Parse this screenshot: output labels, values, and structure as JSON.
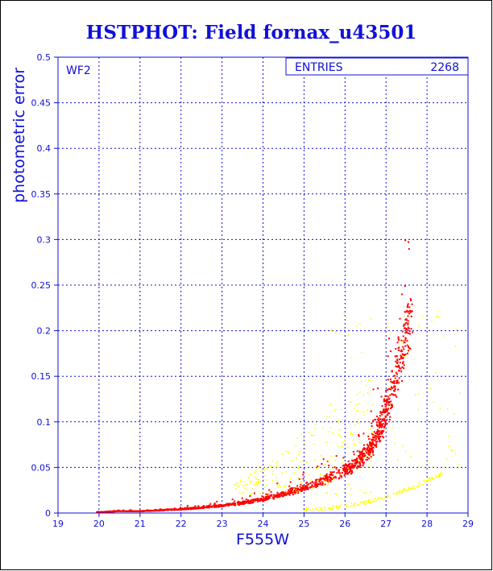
{
  "chart_data": {
    "type": "scatter",
    "title": "HSTPHOT: Field fornax_u43501",
    "xlabel": "F555W",
    "ylabel": "photometric error",
    "xlim": [
      19,
      29
    ],
    "ylim": [
      0,
      0.5
    ],
    "x_ticks": [
      "19",
      "20",
      "21",
      "22",
      "23",
      "24",
      "25",
      "26",
      "27",
      "28",
      "29"
    ],
    "y_ticks": [
      "0",
      "0.05",
      "0.1",
      "0.15",
      "0.2",
      "0.25",
      "0.3",
      "0.35",
      "0.4",
      "0.45",
      "0.5"
    ],
    "grid": true,
    "panel_label": "WF2",
    "stats_box": {
      "label": "ENTRIES",
      "value": "2268",
      "placement": "top-right"
    },
    "series": [
      {
        "color": "#ff0000",
        "description_points": [
          [
            20.0,
            0.001
          ],
          [
            20.5,
            0.002
          ],
          [
            21.0,
            0.002
          ],
          [
            21.5,
            0.003
          ],
          [
            22.0,
            0.004
          ],
          [
            22.5,
            0.006
          ],
          [
            23.0,
            0.008
          ],
          [
            23.5,
            0.011
          ],
          [
            24.0,
            0.015
          ],
          [
            24.5,
            0.021
          ],
          [
            25.0,
            0.028
          ],
          [
            25.5,
            0.036
          ],
          [
            26.0,
            0.046
          ],
          [
            26.3,
            0.055
          ],
          [
            26.6,
            0.07
          ],
          [
            26.8,
            0.085
          ],
          [
            27.0,
            0.11
          ],
          [
            27.2,
            0.14
          ],
          [
            27.4,
            0.18
          ],
          [
            27.6,
            0.215
          ]
        ]
      },
      {
        "color": "#ffff00",
        "description_points": [
          [
            23.5,
            0.03
          ],
          [
            24.0,
            0.04
          ],
          [
            24.5,
            0.06
          ],
          [
            25.0,
            0.08
          ],
          [
            25.5,
            0.1
          ],
          [
            25.0,
            0.005
          ],
          [
            26.0,
            0.008
          ],
          [
            27.0,
            0.015
          ],
          [
            27.8,
            0.03
          ],
          [
            28.2,
            0.045
          ],
          [
            27.0,
            0.2
          ],
          [
            28.4,
            0.21
          ]
        ]
      }
    ]
  }
}
